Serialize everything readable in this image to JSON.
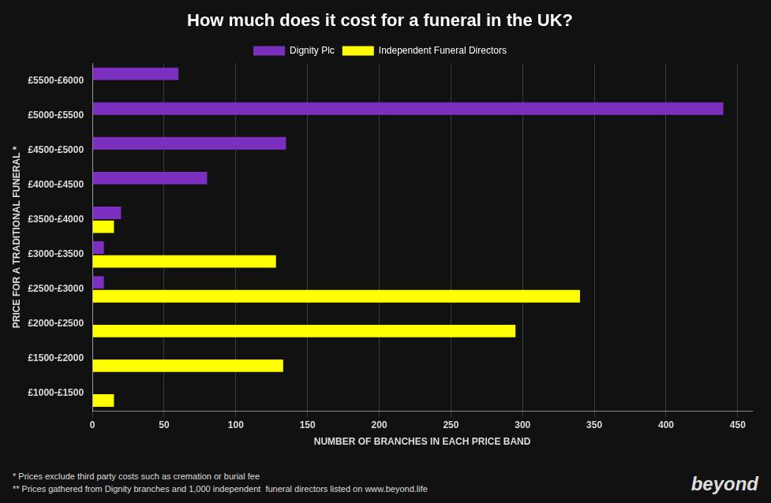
{
  "chart_data": {
    "type": "bar",
    "orientation": "horizontal",
    "title": "How much does it cost for a funeral in the UK?",
    "xlabel": "NUMBER OF BRANCHES IN EACH PRICE BAND",
    "ylabel": "PRICE FOR A TRADITIONAL FUNERAL *",
    "categories": [
      "£1000-£1500",
      "£1500-£2000",
      "£2000-£2500",
      "£2500-£3000",
      "£3000-£3500",
      "£3500-£4000",
      "£4000-£4500",
      "£4500-£5000",
      "£5000-£5500",
      "£5500-£6000"
    ],
    "series": [
      {
        "name": "Dignity Plc",
        "color": "#7B2FBE",
        "values": [
          0,
          0,
          0,
          8,
          8,
          20,
          80,
          135,
          440,
          60
        ]
      },
      {
        "name": "Independent Funeral Directors",
        "color": "#FFFF00",
        "values": [
          15,
          133,
          295,
          340,
          128,
          15,
          0,
          0,
          0,
          0
        ]
      }
    ],
    "xlim": [
      0,
      460
    ],
    "xticks": [
      0,
      50,
      100,
      150,
      200,
      250,
      300,
      350,
      400,
      450
    ],
    "grid": true,
    "legend": "top",
    "annotations": [
      "* Prices exclude third party costs such as cremation or burial fee",
      "** Prices gathered from Dignity branches and 1,000 independent  funeral directors listed on www.beyond.life",
      "beyond"
    ]
  }
}
